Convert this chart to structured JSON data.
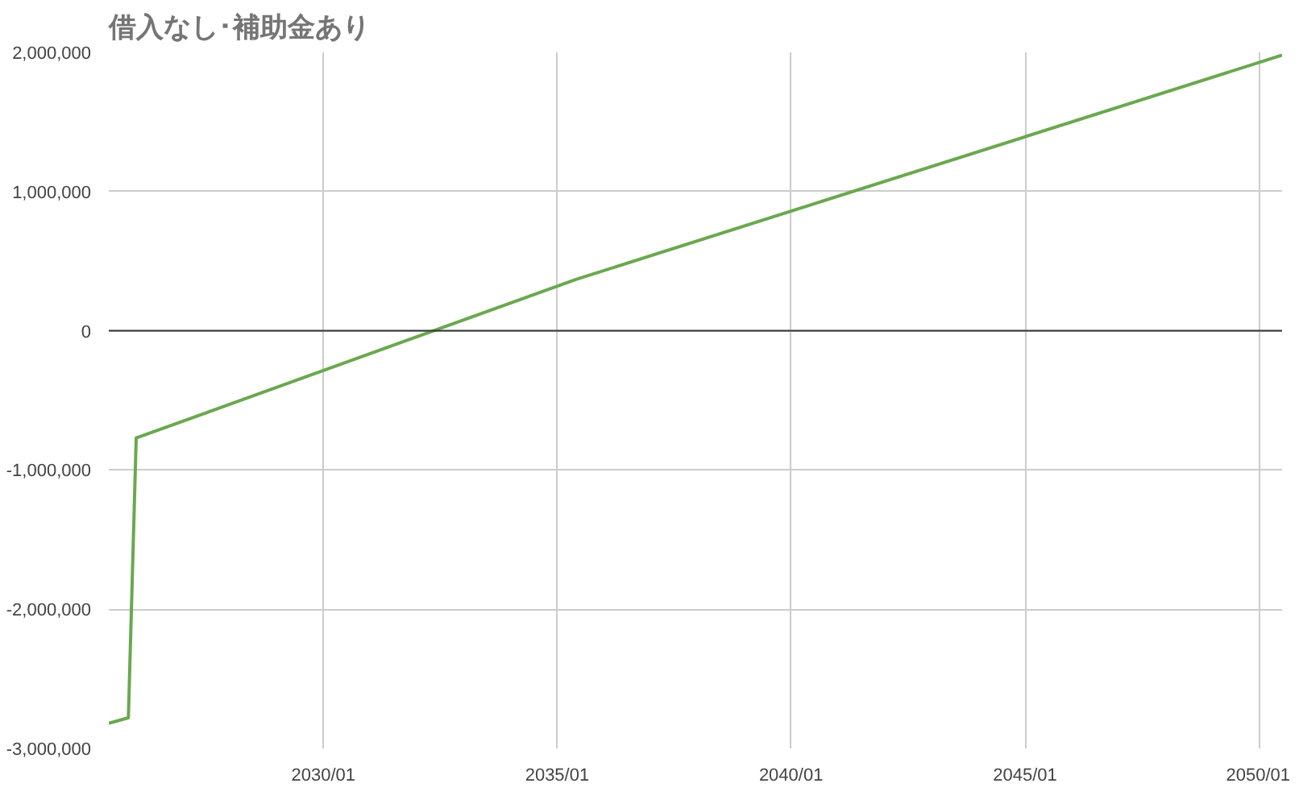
{
  "chart_data": {
    "type": "line",
    "title": "借入なし･補助金あり",
    "x": [
      "2025-06",
      "2025-11",
      "2026-01",
      "2035-06",
      "2050-07"
    ],
    "series": [
      {
        "color": "#6aa84f",
        "values": [
          -2820000,
          -2780000,
          -770000,
          370000,
          1980000
        ]
      }
    ],
    "xlim": [
      "2025-06",
      "2050-07"
    ],
    "xticks": [
      {
        "value": "2030-01",
        "label": "2030/01"
      },
      {
        "value": "2035-01",
        "label": "2035/01"
      },
      {
        "value": "2040-01",
        "label": "2040/01"
      },
      {
        "value": "2045-01",
        "label": "2045/01"
      },
      {
        "value": "2050-01",
        "label": "2050/01"
      }
    ],
    "ylim": [
      -3000000,
      2000000
    ],
    "yticks": [
      {
        "value": -3000000,
        "label": "-3,000,000"
      },
      {
        "value": -2000000,
        "label": "-2,000,000"
      },
      {
        "value": -1000000,
        "label": "-1,000,000"
      },
      {
        "value": 0,
        "label": "0"
      },
      {
        "value": 1000000,
        "label": "1,000,000"
      },
      {
        "value": 2000000,
        "label": "2,000,000"
      }
    ],
    "ref_lines": [
      {
        "axis": "y",
        "value": 0,
        "color": "#333333"
      }
    ],
    "grid": true
  }
}
